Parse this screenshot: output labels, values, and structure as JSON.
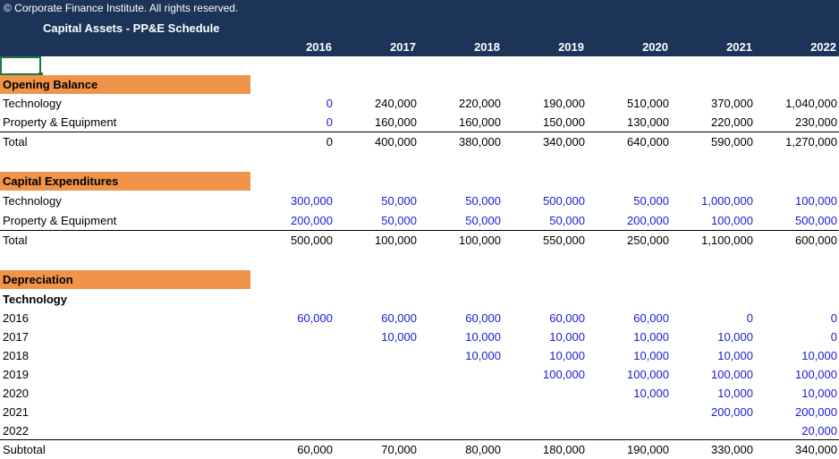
{
  "header": {
    "copyright": "© Corporate Finance Institute. All rights reserved.",
    "title": "Capital Assets - PP&E Schedule",
    "years": [
      "2016",
      "2017",
      "2018",
      "2019",
      "2020",
      "2021",
      "2022"
    ]
  },
  "opening": {
    "title": "Opening Balance",
    "rows": [
      {
        "label": "Technology",
        "values": [
          "0",
          "240,000",
          "220,000",
          "190,000",
          "510,000",
          "370,000",
          "1,040,000"
        ]
      },
      {
        "label": "Property & Equipment",
        "values": [
          "0",
          "160,000",
          "160,000",
          "150,000",
          "130,000",
          "220,000",
          "230,000"
        ]
      }
    ],
    "total": {
      "label": "Total",
      "values": [
        "0",
        "400,000",
        "380,000",
        "340,000",
        "640,000",
        "590,000",
        "1,270,000"
      ]
    }
  },
  "capex": {
    "title": "Capital Expenditures",
    "rows": [
      {
        "label": "Technology",
        "values": [
          "300,000",
          "50,000",
          "50,000",
          "500,000",
          "50,000",
          "1,000,000",
          "100,000"
        ]
      },
      {
        "label": "Property & Equipment",
        "values": [
          "200,000",
          "50,000",
          "50,000",
          "50,000",
          "200,000",
          "100,000",
          "500,000"
        ]
      }
    ],
    "total": {
      "label": "Total",
      "values": [
        "500,000",
        "100,000",
        "100,000",
        "550,000",
        "250,000",
        "1,100,000",
        "600,000"
      ]
    }
  },
  "depreciation": {
    "title": "Depreciation",
    "subtitle": "Technology",
    "rows": [
      {
        "label": "2016",
        "values": [
          "60,000",
          "60,000",
          "60,000",
          "60,000",
          "60,000",
          "0",
          "0"
        ]
      },
      {
        "label": "2017",
        "values": [
          "",
          "10,000",
          "10,000",
          "10,000",
          "10,000",
          "10,000",
          "0"
        ]
      },
      {
        "label": "2018",
        "values": [
          "",
          "",
          "10,000",
          "10,000",
          "10,000",
          "10,000",
          "10,000"
        ]
      },
      {
        "label": "2019",
        "values": [
          "",
          "",
          "",
          "100,000",
          "100,000",
          "100,000",
          "100,000"
        ]
      },
      {
        "label": "2020",
        "values": [
          "",
          "",
          "",
          "",
          "10,000",
          "10,000",
          "10,000"
        ]
      },
      {
        "label": "2021",
        "values": [
          "",
          "",
          "",
          "",
          "",
          "200,000",
          "200,000"
        ]
      },
      {
        "label": "2022",
        "values": [
          "",
          "",
          "",
          "",
          "",
          "",
          "20,000"
        ]
      }
    ],
    "subtotal": {
      "label": "Subtotal",
      "values": [
        "60,000",
        "70,000",
        "80,000",
        "180,000",
        "190,000",
        "330,000",
        "340,000"
      ]
    }
  }
}
